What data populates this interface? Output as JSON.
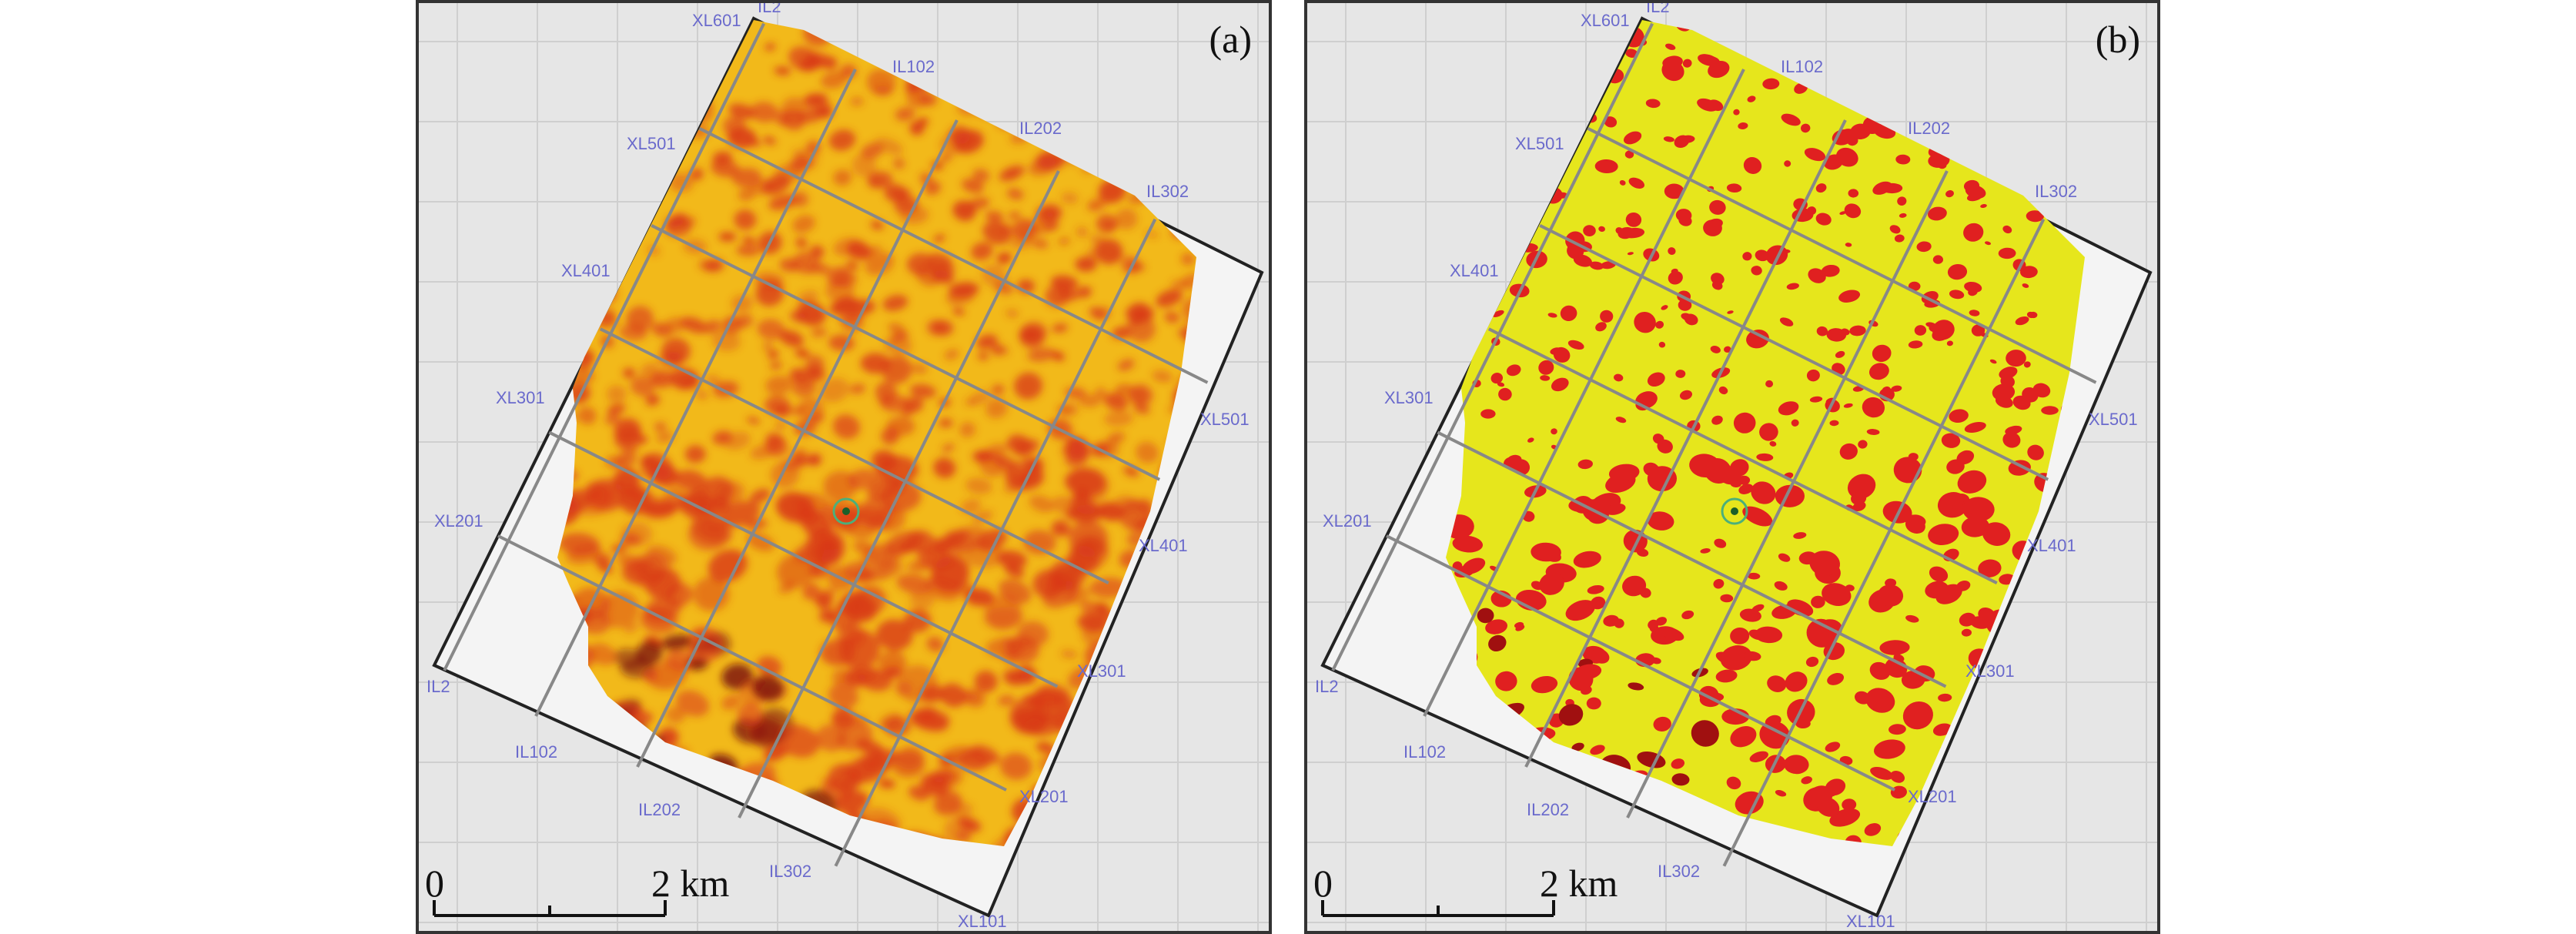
{
  "panels": [
    {
      "id": "a",
      "label": "(a)",
      "style": "continuous-attribute",
      "colors": {
        "fill": "#f2b91a",
        "blob": "#d93a1a",
        "dark": "#7a1010"
      },
      "il_labels": [
        "IL2",
        "IL102",
        "IL202",
        "IL302"
      ],
      "xl_labels": [
        "XL601",
        "XL501",
        "XL401",
        "XL301",
        "XL201",
        "XL101"
      ],
      "scale": {
        "start": "0",
        "end": "2 km"
      }
    },
    {
      "id": "b",
      "label": "(b)",
      "style": "binary-classification",
      "colors": {
        "fill": "#e6e61c",
        "blob": "#e02020",
        "dark": "#a01010"
      },
      "il_labels": [
        "IL2",
        "IL102",
        "IL202",
        "IL302"
      ],
      "xl_labels": [
        "XL601",
        "XL501",
        "XL401",
        "XL301",
        "XL201",
        "XL101"
      ],
      "scale": {
        "start": "0",
        "end": "2 km"
      }
    }
  ]
}
